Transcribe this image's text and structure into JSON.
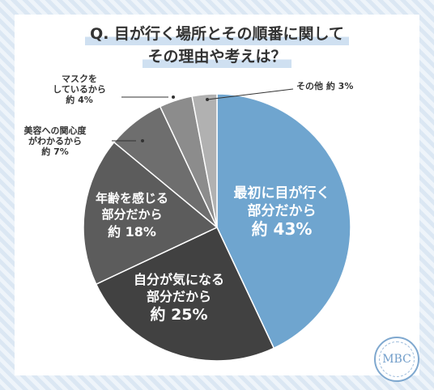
{
  "title": {
    "line1": "Q. 目が行く場所とその順番に関して",
    "line2": "その理由や考えは？"
  },
  "chart_data": {
    "type": "pie",
    "title": "Q. 目が行く場所とその順番に関して その理由や考えは？",
    "slices": [
      {
        "label": [
          "最初に目が行く",
          "部分だから"
        ],
        "value": 43,
        "value_label": "約 43%",
        "color": "#6fa5cf",
        "text_color": "#ffffff"
      },
      {
        "label": [
          "自分が気になる",
          "部分だから"
        ],
        "value": 25,
        "value_label": "約 25%",
        "color": "#414141",
        "text_color": "#ffffff"
      },
      {
        "label": [
          "年齢を感じる",
          "部分だから"
        ],
        "value": 18,
        "value_label": "約 18%",
        "color": "#5c5c5c",
        "text_color": "#ffffff"
      },
      {
        "label": [
          "美容への関心度",
          "がわかるから"
        ],
        "value": 7,
        "value_label": "約 7%",
        "color": "#6e6e6e",
        "text_color": "#333333"
      },
      {
        "label": [
          "マスクを",
          "しているから"
        ],
        "value": 4,
        "value_label": "約 4%",
        "color": "#8c8c8c",
        "text_color": "#333333"
      },
      {
        "label": [
          "その他"
        ],
        "value": 3,
        "value_label": "約 3%",
        "color": "#b1b1b1",
        "text_color": "#333333"
      }
    ]
  },
  "logo": {
    "text": "MBC"
  }
}
